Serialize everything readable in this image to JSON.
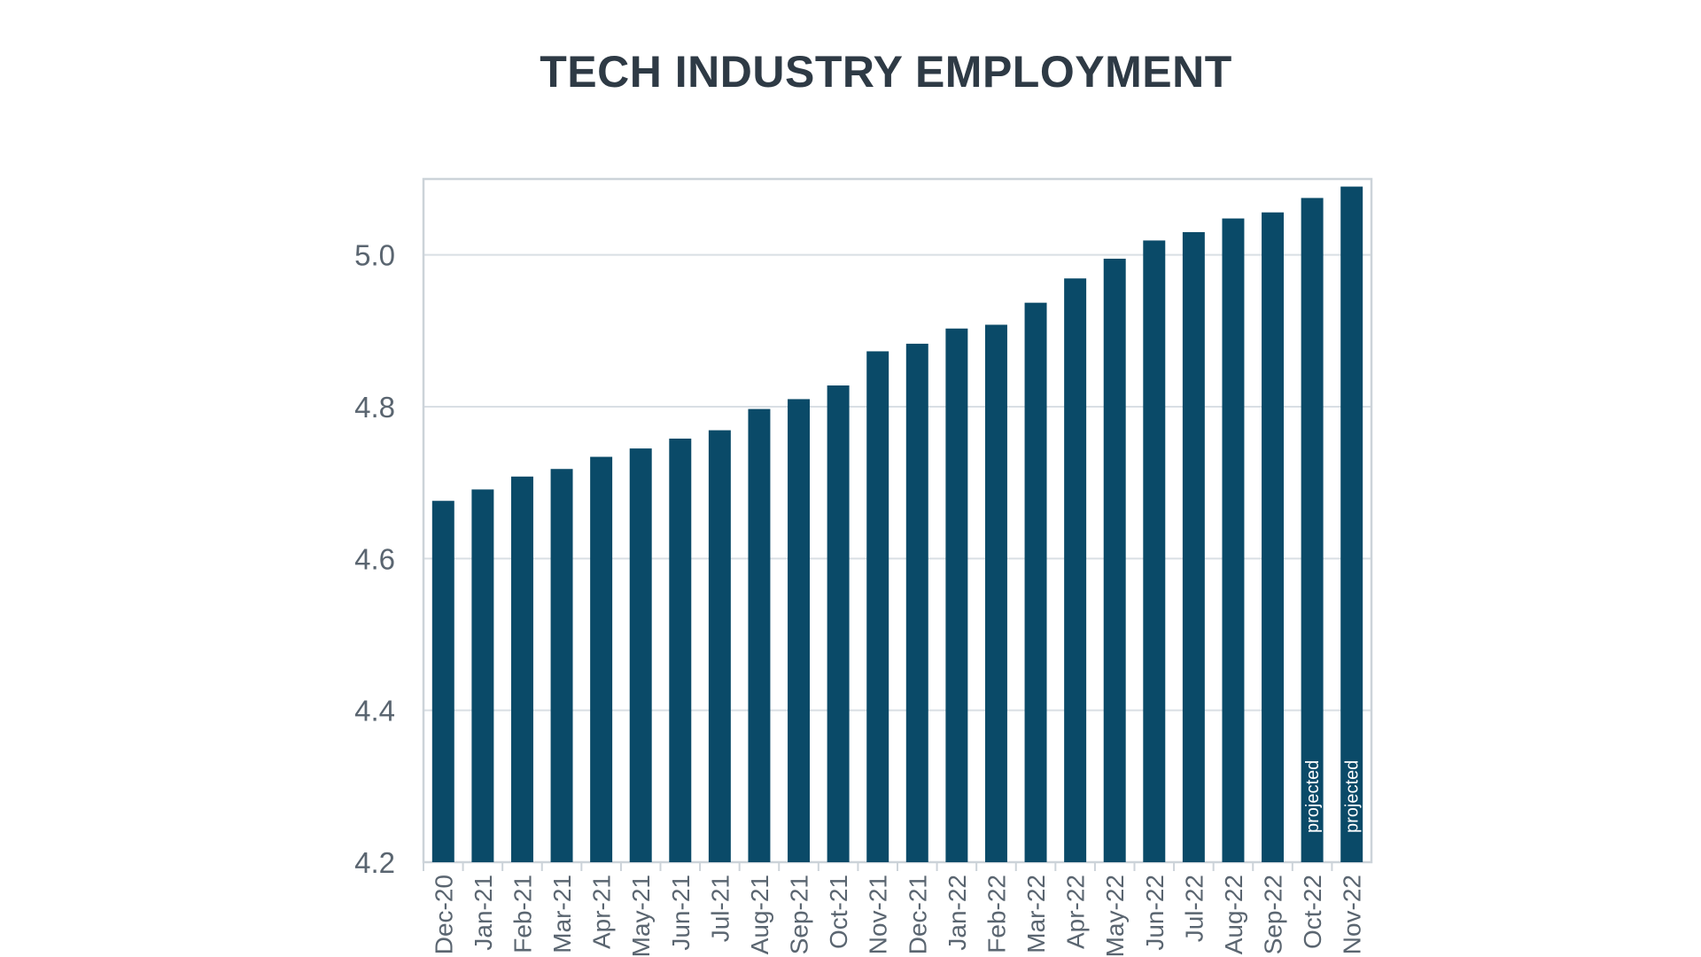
{
  "colors": {
    "bar": "#0a4a68",
    "grid": "#d9dfe4",
    "frame": "#ccd3d9",
    "text": "#5a6570",
    "title": "#2e3a45"
  },
  "chart_data": {
    "type": "bar",
    "title": "TECH INDUSTRY EMPLOYMENT",
    "xlabel": "",
    "ylabel": "",
    "ylim": [
      4.2,
      5.1
    ],
    "yticks": [
      4.2,
      4.4,
      4.6,
      4.8,
      5.0
    ],
    "ytick_labels": [
      "4.2",
      "4.4",
      "4.6",
      "4.8",
      "5.0"
    ],
    "grid": true,
    "categories": [
      "Dec-20",
      "Jan-21",
      "Feb-21",
      "Mar-21",
      "Apr-21",
      "May-21",
      "Jun-21",
      "Jul-21",
      "Aug-21",
      "Sep-21",
      "Oct-21",
      "Nov-21",
      "Dec-21",
      "Jan-22",
      "Feb-22",
      "Mar-22",
      "Apr-22",
      "May-22",
      "Jun-22",
      "Jul-22",
      "Aug-22",
      "Sep-22",
      "Oct-22",
      "Nov-22"
    ],
    "values": [
      4.676,
      4.691,
      4.708,
      4.718,
      4.734,
      4.745,
      4.758,
      4.769,
      4.797,
      4.81,
      4.828,
      4.873,
      4.883,
      4.903,
      4.908,
      4.937,
      4.969,
      4.995,
      5.019,
      5.03,
      5.048,
      5.056,
      5.075,
      5.09
    ],
    "annotations": [
      {
        "category": "Oct-22",
        "text": "projected"
      },
      {
        "category": "Nov-22",
        "text": "projected"
      }
    ]
  }
}
